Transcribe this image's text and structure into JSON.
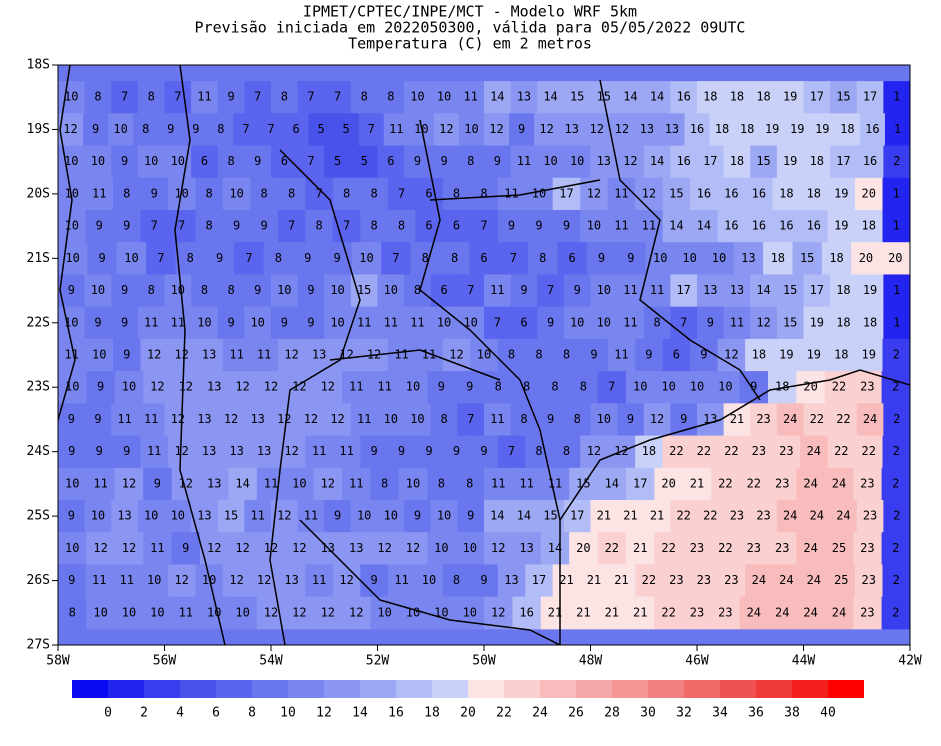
{
  "header": {
    "title_lines": [
      "IPMET/CPTEC/INPE/MCT - Modelo WRF 5km",
      "Previsão iniciada em 2022050300, válida para 05/05/2022 09UTC",
      "Temperatura (C) em 2 metros"
    ]
  },
  "map": {
    "xlim": [
      -58,
      -42
    ],
    "ylim": [
      -18,
      -27
    ],
    "xticks": [
      {
        "value": -58,
        "label": "58W"
      },
      {
        "value": -56,
        "label": "56W"
      },
      {
        "value": -54,
        "label": "54W"
      },
      {
        "value": -52,
        "label": "52W"
      },
      {
        "value": -50,
        "label": "50W"
      },
      {
        "value": -48,
        "label": "48W"
      },
      {
        "value": -46,
        "label": "46W"
      },
      {
        "value": -44,
        "label": "44W"
      },
      {
        "value": -42,
        "label": "42W"
      }
    ],
    "yticks": [
      {
        "value": -18,
        "label": "18S"
      },
      {
        "value": -19,
        "label": "19S"
      },
      {
        "value": -20,
        "label": "20S"
      },
      {
        "value": -21,
        "label": "21S"
      },
      {
        "value": -22,
        "label": "22S"
      },
      {
        "value": -23,
        "label": "23S"
      },
      {
        "value": -24,
        "label": "24S"
      },
      {
        "value": -25,
        "label": "25S"
      },
      {
        "value": -26,
        "label": "26S"
      },
      {
        "value": -27,
        "label": "27S"
      }
    ],
    "grid_labels": [
      [
        10,
        8,
        7,
        8,
        7,
        11,
        9,
        7,
        8,
        7,
        7,
        8,
        8,
        10,
        10,
        11,
        14,
        13,
        14,
        15,
        15,
        14,
        14,
        16,
        18,
        18,
        18,
        19,
        17,
        15,
        17,
        1
      ],
      [
        12,
        9,
        10,
        8,
        9,
        9,
        8,
        7,
        7,
        6,
        5,
        5,
        7,
        11,
        10,
        12,
        10,
        12,
        9,
        12,
        13,
        12,
        12,
        13,
        13,
        16,
        18,
        18,
        19,
        19,
        19,
        18,
        16,
        1
      ],
      [
        10,
        10,
        9,
        10,
        10,
        6,
        8,
        9,
        6,
        7,
        5,
        5,
        6,
        9,
        9,
        8,
        9,
        11,
        10,
        10,
        13,
        12,
        14,
        16,
        17,
        18,
        15,
        19,
        18,
        17,
        16,
        2
      ],
      [
        10,
        11,
        8,
        9,
        10,
        8,
        10,
        8,
        8,
        7,
        8,
        8,
        7,
        6,
        8,
        8,
        11,
        10,
        17,
        12,
        11,
        12,
        15,
        16,
        16,
        16,
        18,
        18,
        19,
        20,
        1
      ],
      [
        10,
        9,
        9,
        7,
        7,
        8,
        9,
        9,
        7,
        8,
        7,
        8,
        8,
        6,
        6,
        7,
        9,
        9,
        9,
        10,
        11,
        11,
        14,
        14,
        16,
        16,
        16,
        16,
        19,
        18,
        1
      ],
      [
        10,
        9,
        10,
        7,
        8,
        9,
        7,
        8,
        9,
        9,
        10,
        7,
        8,
        8,
        6,
        7,
        8,
        6,
        9,
        9,
        10,
        10,
        10,
        13,
        18,
        15,
        18,
        20,
        20
      ],
      [
        9,
        10,
        9,
        8,
        10,
        8,
        8,
        9,
        10,
        9,
        10,
        15,
        10,
        8,
        6,
        7,
        11,
        9,
        7,
        9,
        10,
        11,
        11,
        17,
        13,
        13,
        14,
        15,
        17,
        18,
        19,
        1
      ],
      [
        10,
        9,
        9,
        11,
        11,
        10,
        9,
        10,
        9,
        9,
        10,
        11,
        11,
        11,
        10,
        10,
        7,
        6,
        9,
        10,
        10,
        11,
        8,
        7,
        9,
        11,
        12,
        15,
        19,
        18,
        18,
        1
      ],
      [
        11,
        10,
        9,
        12,
        12,
        13,
        11,
        11,
        12,
        13,
        12,
        12,
        11,
        11,
        12,
        10,
        8,
        8,
        8,
        9,
        11,
        9,
        6,
        9,
        12,
        18,
        19,
        19,
        18,
        19,
        2
      ],
      [
        10,
        9,
        10,
        12,
        12,
        13,
        12,
        12,
        12,
        12,
        11,
        11,
        10,
        9,
        9,
        8,
        8,
        8,
        8,
        7,
        10,
        10,
        10,
        10,
        9,
        18,
        20,
        22,
        23,
        2
      ],
      [
        9,
        9,
        11,
        11,
        12,
        13,
        12,
        13,
        12,
        12,
        12,
        11,
        10,
        10,
        8,
        7,
        11,
        8,
        9,
        8,
        10,
        9,
        12,
        9,
        13,
        21,
        23,
        24,
        22,
        22,
        24,
        2
      ],
      [
        9,
        9,
        9,
        11,
        12,
        13,
        13,
        13,
        12,
        11,
        11,
        9,
        9,
        9,
        9,
        9,
        7,
        8,
        8,
        12,
        12,
        18,
        22,
        22,
        22,
        23,
        23,
        24,
        22,
        22,
        2
      ],
      [
        10,
        11,
        12,
        9,
        12,
        13,
        14,
        11,
        10,
        12,
        11,
        8,
        10,
        8,
        8,
        11,
        11,
        11,
        15,
        14,
        17,
        20,
        21,
        22,
        22,
        23,
        24,
        24,
        23,
        2
      ],
      [
        9,
        10,
        13,
        10,
        10,
        13,
        15,
        11,
        12,
        11,
        9,
        10,
        10,
        9,
        10,
        9,
        14,
        14,
        15,
        17,
        21,
        21,
        21,
        22,
        22,
        23,
        23,
        24,
        24,
        24,
        23,
        2
      ],
      [
        10,
        12,
        12,
        11,
        9,
        12,
        12,
        12,
        12,
        13,
        13,
        12,
        12,
        10,
        10,
        12,
        13,
        14,
        20,
        22,
        21,
        22,
        23,
        22,
        23,
        23,
        24,
        25,
        23,
        2
      ],
      [
        9,
        11,
        11,
        10,
        12,
        10,
        12,
        12,
        13,
        11,
        12,
        9,
        11,
        10,
        8,
        9,
        13,
        17,
        21,
        21,
        21,
        22,
        23,
        23,
        23,
        24,
        24,
        24,
        25,
        23,
        2
      ],
      [
        8,
        10,
        10,
        10,
        11,
        10,
        10,
        12,
        12,
        12,
        12,
        10,
        10,
        10,
        10,
        12,
        16,
        21,
        21,
        21,
        21,
        22,
        23,
        23,
        24,
        24,
        24,
        24,
        23,
        2
      ]
    ]
  },
  "colorbar": {
    "levels": [
      0,
      2,
      4,
      6,
      8,
      10,
      12,
      14,
      16,
      18,
      20,
      22,
      24,
      26,
      28,
      30,
      32,
      34,
      36,
      38,
      40
    ],
    "colors": [
      "#0a0af5",
      "#2424f0",
      "#3a3cf0",
      "#4a52ec",
      "#5a64ee",
      "#6a76ee",
      "#7a86f0",
      "#8a96f2",
      "#9ca8f4",
      "#b2bcf6",
      "#cad1f8",
      "#fce4e4",
      "#fad0d0",
      "#f8bcbc",
      "#f6a8a8",
      "#f49494",
      "#f28080",
      "#f06a6a",
      "#f05252",
      "#f03a3a",
      "#f42020",
      "#ff0000"
    ]
  }
}
